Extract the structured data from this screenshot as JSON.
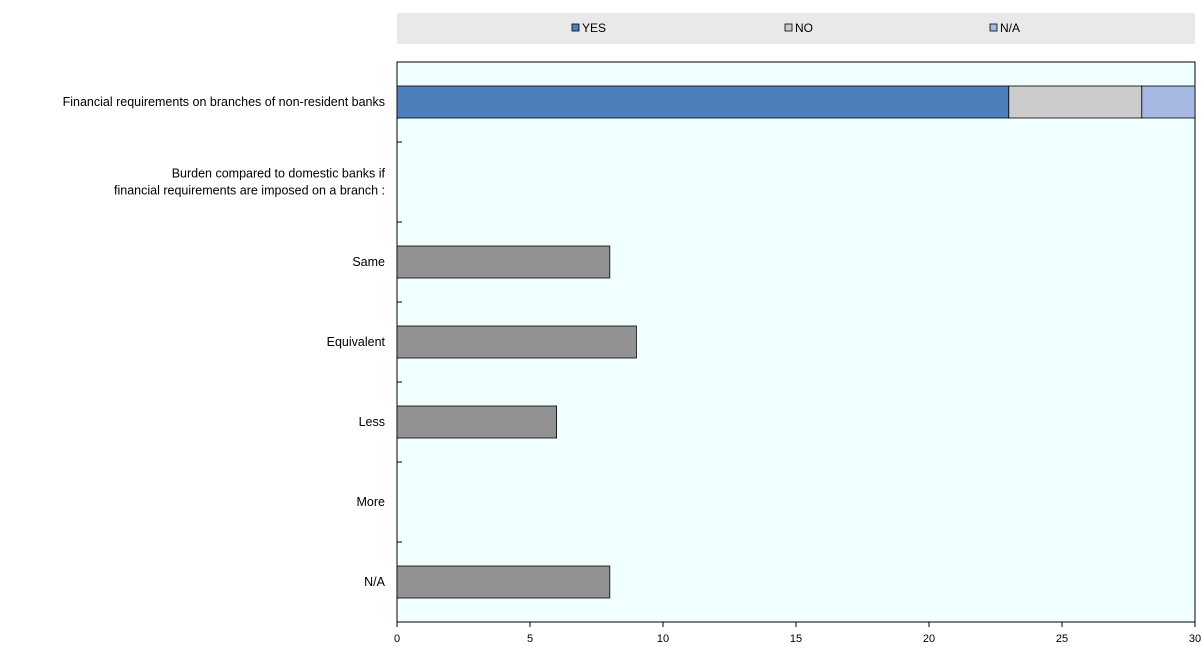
{
  "chart_data": {
    "type": "bar",
    "orientation": "horizontal",
    "stacked": true,
    "categories": [
      [
        "Financial requirements on branches of non-resident banks"
      ],
      [
        "Burden compared to domestic banks if",
        "financial  requirements are imposed on a branch :"
      ],
      [
        "Same"
      ],
      [
        "Equivalent"
      ],
      [
        "Less"
      ],
      [
        "More"
      ],
      [
        "N/A"
      ]
    ],
    "legend": {
      "position": "top",
      "entries": [
        {
          "name": "YES",
          "color": "#4d7fbd"
        },
        {
          "name": "NO",
          "color": "#cccccc"
        },
        {
          "name": "N/A",
          "color": "#a7b9e3"
        }
      ]
    },
    "series": [
      {
        "name": "YES",
        "color": "#4d7fbd",
        "values": [
          23,
          null,
          null,
          null,
          null,
          null,
          null
        ]
      },
      {
        "name": "NO",
        "color": "#cccccc",
        "values": [
          5,
          null,
          null,
          null,
          null,
          null,
          null
        ]
      },
      {
        "name": "N/A",
        "color": "#a7b9e3",
        "values": [
          2,
          null,
          null,
          null,
          null,
          null,
          null
        ]
      },
      {
        "color": "#929292",
        "values": [
          null,
          null,
          8,
          9,
          6,
          0,
          8
        ]
      }
    ],
    "xlim": [
      0,
      30
    ],
    "xticks": [
      0,
      5,
      10,
      15,
      20,
      25,
      30
    ],
    "plot_background": "#f0ffff",
    "legend_background": "#e9e9e9",
    "grid": false
  }
}
